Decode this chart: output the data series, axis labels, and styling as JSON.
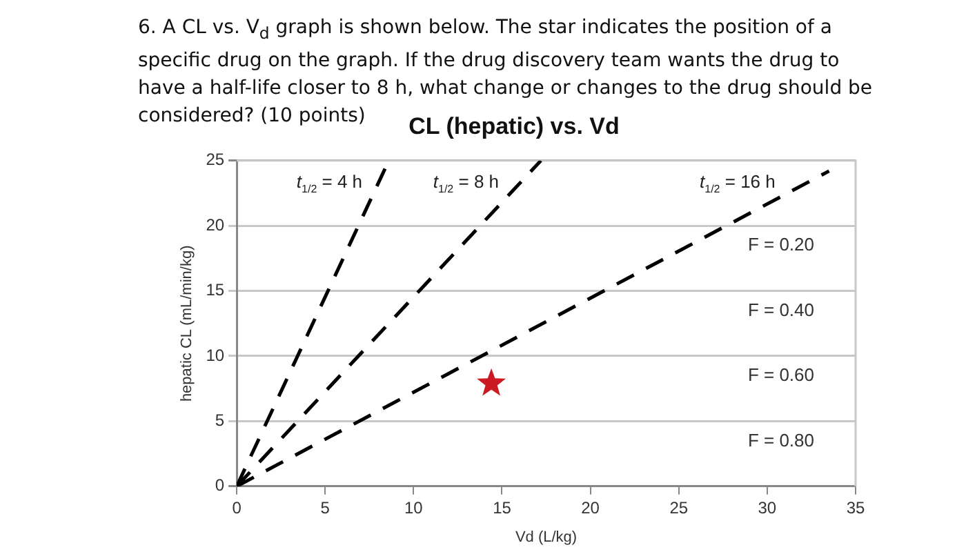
{
  "chart_data": {
    "type": "line",
    "title": "CL (hepatic) vs. Vd",
    "xlabel": "Vd (L/kg)",
    "ylabel": "hepatic CL (mL/min/kg)",
    "annotations": [
      "6. A CL vs. V$_{d}$ graph is shown below. The star indicates the position of a specific drug on the graph. If the drug discovery team wants the drug to have a half-life closer to 8 h, what change or changes to the drug should be considered? (10 points)",
      "F = 0.20",
      "F = 0.40",
      "F = 0.60",
      "F = 0.80"
    ],
    "series": [
      {
        "name": "t$_{1/2}$ = 4 h",
        "color": "#000000",
        "x": [
          0,
          8.6
        ],
        "values": [
          0,
          25
        ]
      },
      {
        "name": "t$_{1/2}$ = 8 h",
        "color": "#000000",
        "x": [
          0,
          17.2
        ],
        "values": [
          0,
          25
        ]
      },
      {
        "name": "t$_{1/2}$ = 16 h",
        "color": "#000000",
        "x": [
          0,
          33.5
        ],
        "values": [
          0,
          24.2
        ]
      },
      {
        "type": "scatter",
        "marker": "star",
        "color": "#cc1a22",
        "x": [
          14.4
        ],
        "values": [
          7.9
        ]
      }
    ],
    "line_style": "dashed",
    "marker": "none",
    "grid": "y",
    "legend": false,
    "xlim": [
      0,
      35
    ],
    "xticks": [
      0,
      5,
      10,
      15,
      20,
      25,
      30,
      35
    ],
    "ylim": [
      0,
      25
    ],
    "yticks": [
      0,
      5,
      10,
      15,
      20,
      25
    ]
  }
}
